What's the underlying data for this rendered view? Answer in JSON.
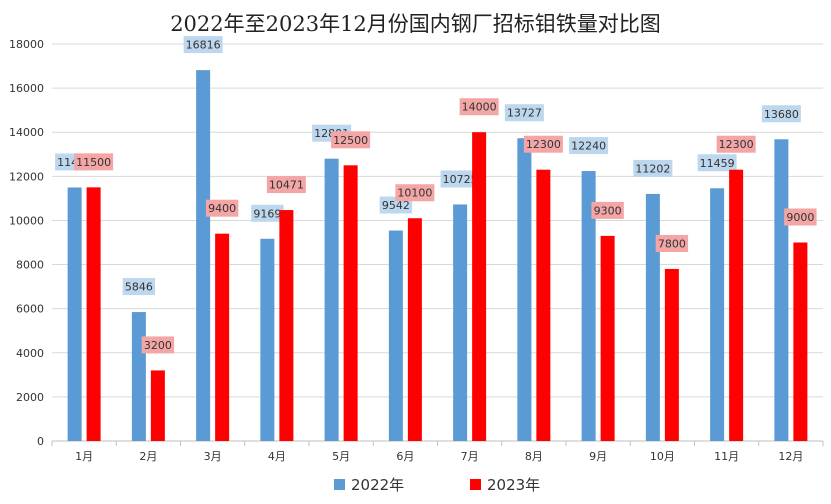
{
  "chart_data": {
    "type": "bar",
    "title": "2022年至2023年12月份国内钢厂招标钼铁量对比图",
    "categories": [
      "1月",
      "2月",
      "3月",
      "4月",
      "5月",
      "6月",
      "7月",
      "8月",
      "9月",
      "10月",
      "11月",
      "12月"
    ],
    "ylim": [
      0,
      18000
    ],
    "yticks": [
      0,
      2000,
      4000,
      6000,
      8000,
      10000,
      12000,
      14000,
      16000,
      18000
    ],
    "grid": true,
    "legend_position": "bottom",
    "series": [
      {
        "name": "2022年",
        "color": "#5b9bd5",
        "label_bg": "#bdd7ee",
        "values": [
          11495,
          5846,
          16816,
          9169,
          12801,
          9542,
          10725,
          13727,
          12240,
          11202,
          11459,
          13680
        ]
      },
      {
        "name": "2023年",
        "color": "#ff0000",
        "label_bg": "#f4a6a6",
        "values": [
          11500,
          3200,
          9400,
          10471,
          12500,
          10100,
          14000,
          12300,
          9300,
          7800,
          12300,
          9000
        ]
      }
    ]
  }
}
